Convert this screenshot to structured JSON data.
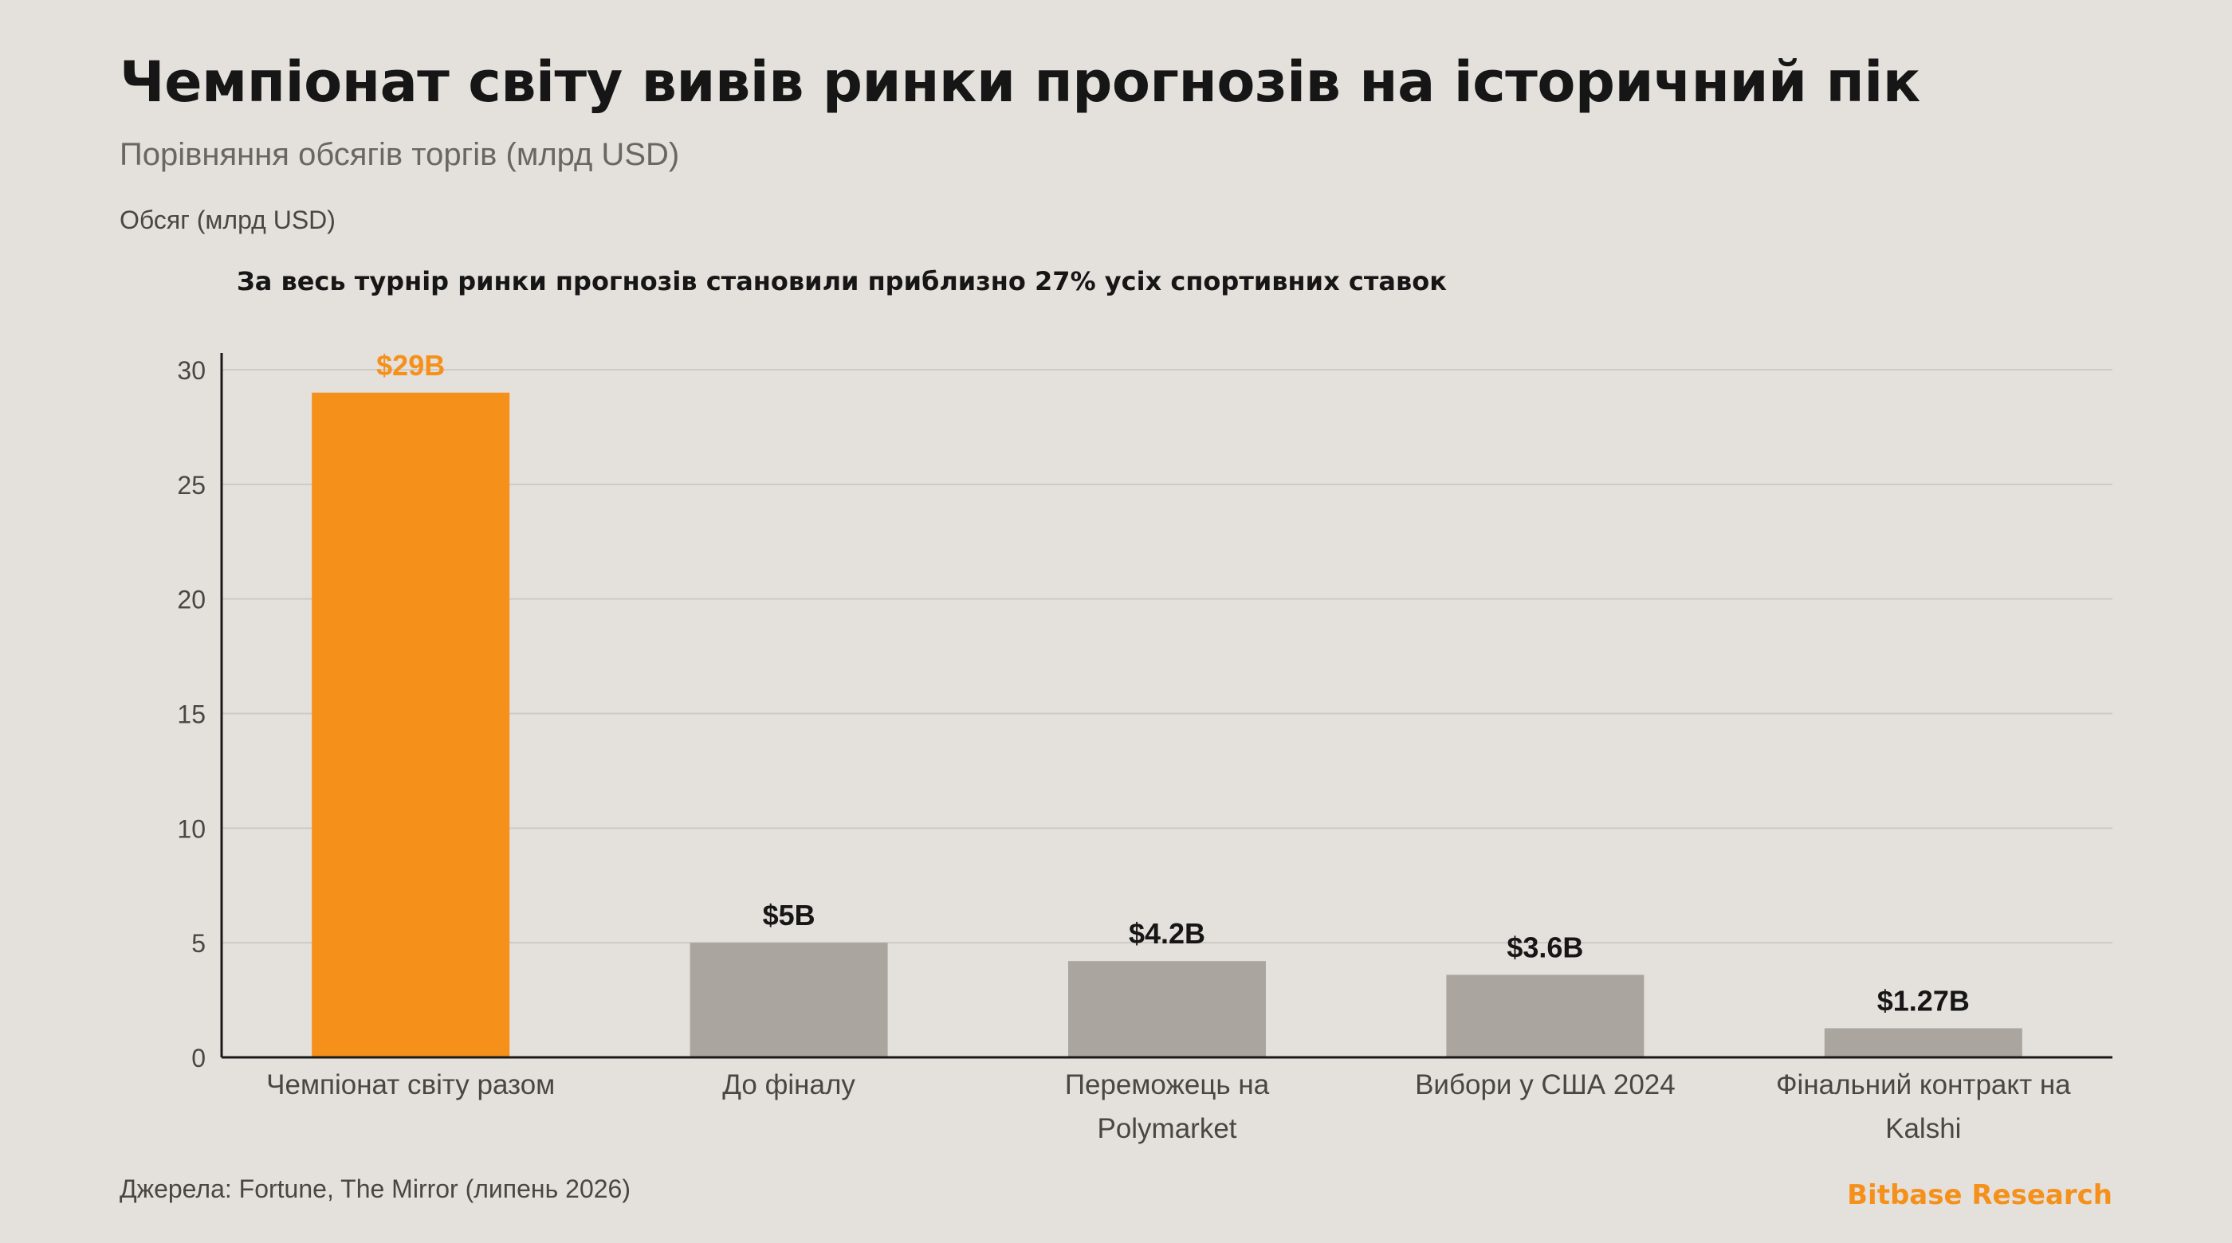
{
  "header": {
    "title": "Чемпіонат світу вивів ринки прогнозів на історичний пік",
    "subtitle": "Порівняння обсягів торгів (млрд USD)"
  },
  "footer": {
    "source": "Джерела: Fortune, The Mirror (липень 2026)",
    "brand": "Bitbase Research"
  },
  "colors": {
    "highlight": "#f5901a",
    "bar": "#aaa59f",
    "grid": "#cfcac4",
    "axis": "#1a1a1a",
    "tick_text": "#4a4642",
    "value_text": "#161616",
    "background": "#e4e0db"
  },
  "chart_data": {
    "type": "bar",
    "title": "Чемпіонат світу вивів ринки прогнозів на історичний пік",
    "subtitle": "Порівняння обсягів торгів (млрд USD)",
    "xlabel": "",
    "ylabel": "Обсяг (млрд USD)",
    "annotation": "За весь турнір ринки прогнозів становили приблизно 27% усіх спортивних ставок",
    "categories": [
      [
        "Чемпіонат світу разом"
      ],
      [
        "До фіналу"
      ],
      [
        "Переможець на",
        "Polymarket"
      ],
      [
        "Вибори у США 2024"
      ],
      [
        "Фінальний контракт на",
        "Kalshi"
      ]
    ],
    "values": [
      29,
      5,
      4.2,
      3.6,
      1.27
    ],
    "value_labels": [
      "$29B",
      "$5B",
      "$4.2B",
      "$3.6B",
      "$1.27B"
    ],
    "highlight_index": 0,
    "ylim": [
      0,
      30
    ],
    "yticks": [
      0,
      5,
      10,
      15,
      20,
      25,
      30
    ],
    "grid": true,
    "legend": "none"
  }
}
